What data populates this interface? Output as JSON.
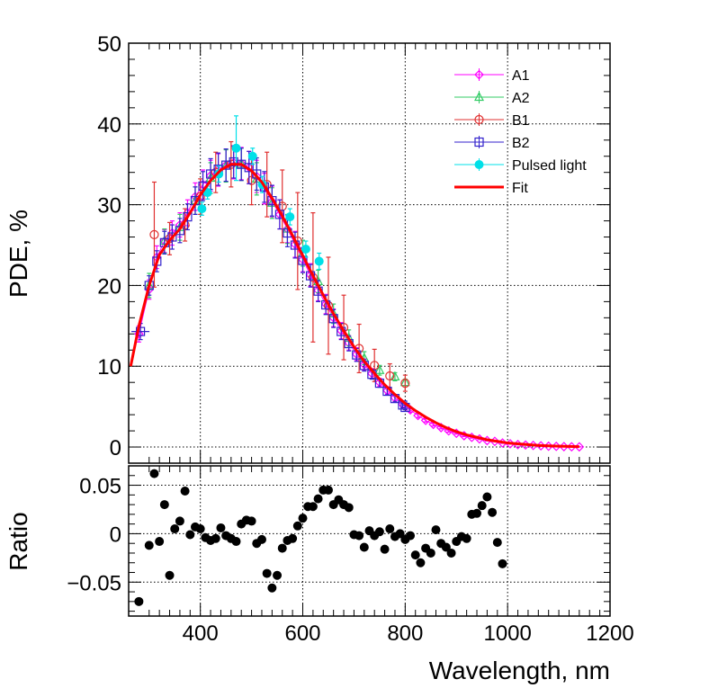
{
  "chart_data": [
    {
      "type": "scatter",
      "panel": "top",
      "title": "",
      "xlabel": "",
      "ylabel": "PDE, %",
      "xlim": [
        260,
        1200
      ],
      "ylim": [
        -2,
        50
      ],
      "yticks": [
        0,
        10,
        20,
        30,
        40,
        50
      ],
      "grid": true,
      "legend_position": "top-right",
      "series": [
        {
          "name": "A1",
          "color": "#ff00ff",
          "marker": "diamond-open",
          "x": [
            280,
            300,
            315,
            330,
            345,
            360,
            375,
            390,
            405,
            420,
            435,
            450,
            465,
            480,
            495,
            510,
            525,
            540,
            555,
            570,
            585,
            600,
            615,
            630,
            645,
            660,
            675,
            690,
            705,
            720,
            735,
            750,
            765,
            780,
            795,
            810,
            825,
            840,
            855,
            870,
            885,
            900,
            915,
            930,
            945,
            960,
            975,
            990,
            1005,
            1020,
            1035,
            1050,
            1065,
            1080,
            1095,
            1110,
            1125,
            1140
          ],
          "y": [
            14.0,
            19.5,
            23.5,
            25.5,
            26.5,
            27.5,
            29.0,
            31.0,
            32.5,
            33.6,
            34.3,
            34.9,
            35.2,
            35.1,
            34.6,
            33.5,
            32.0,
            30.4,
            28.8,
            27.0,
            25.1,
            23.2,
            21.3,
            19.4,
            17.7,
            16.0,
            14.4,
            12.9,
            11.5,
            10.2,
            9.1,
            8.0,
            7.0,
            6.1,
            5.3,
            4.6,
            3.9,
            3.3,
            2.8,
            2.4,
            2.0,
            1.7,
            1.4,
            1.2,
            1.0,
            0.8,
            0.7,
            0.5,
            0.4,
            0.3,
            0.25,
            0.2,
            0.15,
            0.1,
            0.08,
            0.05,
            0.03,
            0.02
          ],
          "err": [
            1.0,
            1.2,
            1.4,
            1.4,
            1.5,
            1.5,
            1.6,
            1.7,
            1.8,
            1.9,
            2.0,
            2.0,
            2.0,
            2.0,
            2.0,
            2.0,
            1.9,
            1.9,
            1.8,
            1.7,
            1.6,
            1.5,
            1.4,
            1.3,
            1.2,
            1.1,
            1.0,
            0.9,
            0.8,
            0.7,
            0.6,
            0.5,
            0.45,
            0.4,
            0.35,
            0.3,
            0.25,
            0.2,
            0.2,
            0.15,
            0.15,
            0.1,
            0.1,
            0.1,
            0.08,
            0.06,
            0.05,
            0.05,
            0.04,
            0.03,
            0.03,
            0.02,
            0.02,
            0.02,
            0.01,
            0.01,
            0.01,
            0.01
          ]
        },
        {
          "name": "A2",
          "color": "#33cc66",
          "marker": "triangle-open",
          "x": [
            300,
            330,
            360,
            390,
            420,
            450,
            480,
            510,
            540,
            570,
            600,
            630,
            660,
            690,
            720,
            750,
            780,
            800
          ],
          "y": [
            20.0,
            25.5,
            27.2,
            30.5,
            33.3,
            34.8,
            35.0,
            33.2,
            30.2,
            27.0,
            24.0,
            20.5,
            16.5,
            13.5,
            11.0,
            9.5,
            8.7,
            8.0
          ],
          "err": [
            1.5,
            1.5,
            1.6,
            1.7,
            1.9,
            2.0,
            2.0,
            2.0,
            1.9,
            1.8,
            1.6,
            1.4,
            1.2,
            1.0,
            0.8,
            0.6,
            0.5,
            0.4
          ]
        },
        {
          "name": "B1",
          "color": "#e03030",
          "marker": "circle-open",
          "x": [
            310,
            340,
            370,
            400,
            430,
            460,
            500,
            530,
            560,
            590,
            620,
            650,
            680,
            710,
            740,
            770,
            800
          ],
          "y": [
            26.3,
            25.8,
            27.5,
            31.0,
            34.0,
            35.0,
            33.0,
            32.5,
            29.8,
            25.5,
            21.0,
            17.5,
            14.8,
            12.2,
            10.1,
            8.8,
            7.9
          ],
          "err": [
            6.5,
            2.0,
            2.0,
            2.2,
            2.5,
            2.8,
            3.0,
            4.0,
            4.5,
            6.0,
            8.0,
            6.0,
            4.0,
            3.0,
            2.0,
            1.5,
            1.0
          ]
        },
        {
          "name": "B2",
          "color": "#3322cc",
          "marker": "square-open",
          "x": [
            283,
            300,
            315,
            330,
            345,
            360,
            375,
            390,
            405,
            420,
            435,
            450,
            465,
            480,
            495,
            510,
            525,
            540,
            555,
            570,
            585,
            600,
            615,
            630,
            645,
            660,
            675,
            690,
            705,
            720,
            735,
            750,
            765,
            780,
            795,
            800
          ],
          "y": [
            14.3,
            20.0,
            23.0,
            25.3,
            26.0,
            26.8,
            28.5,
            30.5,
            32.3,
            33.8,
            34.4,
            34.9,
            35.3,
            35.0,
            34.6,
            33.8,
            32.2,
            30.5,
            28.8,
            26.5,
            25.0,
            23.1,
            21.2,
            19.3,
            17.6,
            15.9,
            14.3,
            12.8,
            11.4,
            10.1,
            9.0,
            7.9,
            6.9,
            6.0,
            5.2,
            4.9
          ],
          "err": [
            1.0,
            1.2,
            1.3,
            1.4,
            1.5,
            1.5,
            1.6,
            1.7,
            1.8,
            1.9,
            2.0,
            2.0,
            2.0,
            2.0,
            2.0,
            2.0,
            1.9,
            1.9,
            1.8,
            1.7,
            1.6,
            1.5,
            1.4,
            1.3,
            1.2,
            1.1,
            1.0,
            0.9,
            0.8,
            0.7,
            0.6,
            0.5,
            0.45,
            0.4,
            0.35,
            0.3
          ]
        },
        {
          "name": "Pulsed light",
          "color": "#00e0e8",
          "marker": "circle-filled",
          "x": [
            403,
            414,
            436,
            470,
            502,
            521,
            575,
            606,
            632
          ],
          "y": [
            29.5,
            31.5,
            33.8,
            37.0,
            36.0,
            32.5,
            28.5,
            24.5,
            23.0
          ],
          "err": [
            0.8,
            0.8,
            1.0,
            4.0,
            1.0,
            1.0,
            1.0,
            1.0,
            1.0
          ]
        },
        {
          "name": "Fit",
          "color": "#ff0000",
          "marker": "line",
          "x": [
            264,
            280,
            300,
            320,
            340,
            360,
            380,
            400,
            420,
            440,
            460,
            480,
            500,
            520,
            540,
            560,
            580,
            600,
            620,
            640,
            660,
            680,
            700,
            720,
            740,
            760,
            780,
            800,
            820,
            840,
            860,
            880,
            900,
            920,
            940,
            960,
            980,
            1000,
            1020,
            1040,
            1060,
            1080,
            1100,
            1120,
            1140
          ],
          "y": [
            10.0,
            15.0,
            20.0,
            23.8,
            25.6,
            27.0,
            29.0,
            31.2,
            33.0,
            34.3,
            35.0,
            35.0,
            34.2,
            32.8,
            30.8,
            28.6,
            26.2,
            23.7,
            21.2,
            18.8,
            16.5,
            14.4,
            12.4,
            10.6,
            9.1,
            7.7,
            6.5,
            5.4,
            4.5,
            3.7,
            3.0,
            2.4,
            1.9,
            1.5,
            1.2,
            0.9,
            0.7,
            0.5,
            0.4,
            0.3,
            0.2,
            0.15,
            0.1,
            0.07,
            0.05
          ]
        }
      ]
    },
    {
      "type": "scatter",
      "panel": "bottom",
      "title": "",
      "xlabel": "Wavelength, nm",
      "ylabel": "Ratio",
      "xlim": [
        260,
        1200
      ],
      "ylim": [
        -0.085,
        0.07
      ],
      "xticks": [
        400,
        600,
        800,
        1000,
        1200
      ],
      "yticks": [
        -0.05,
        0,
        0.05
      ],
      "ytick_labels": [
        "−0.05",
        "0",
        "0.05"
      ],
      "grid": true,
      "series": [
        {
          "name": "Ratio",
          "color": "#000000",
          "marker": "circle-filled",
          "x": [
            280,
            300,
            310,
            320,
            330,
            340,
            350,
            360,
            370,
            380,
            390,
            400,
            410,
            420,
            430,
            440,
            450,
            460,
            470,
            480,
            490,
            500,
            510,
            520,
            530,
            540,
            550,
            560,
            570,
            580,
            590,
            600,
            610,
            620,
            630,
            640,
            650,
            660,
            670,
            680,
            690,
            700,
            710,
            720,
            730,
            740,
            750,
            760,
            770,
            780,
            790,
            800,
            810,
            820,
            830,
            840,
            850,
            860,
            870,
            880,
            890,
            900,
            910,
            920,
            930,
            940,
            950,
            960,
            970,
            980,
            990
          ],
          "y": [
            -0.07,
            -0.012,
            0.062,
            -0.008,
            0.03,
            -0.043,
            0.005,
            0.013,
            0.044,
            -0.001,
            0.007,
            0.005,
            -0.004,
            -0.007,
            -0.005,
            0.006,
            -0.002,
            -0.005,
            -0.008,
            0.01,
            0.014,
            0.013,
            -0.01,
            -0.006,
            -0.041,
            -0.056,
            -0.043,
            -0.015,
            -0.007,
            -0.005,
            0.008,
            0.016,
            0.028,
            0.028,
            0.036,
            0.045,
            0.045,
            0.03,
            0.035,
            0.03,
            0.027,
            -0.001,
            -0.002,
            -0.014,
            0.003,
            -0.002,
            0.002,
            -0.016,
            0.005,
            -0.003,
            0.0,
            -0.006,
            -0.002,
            -0.022,
            -0.03,
            -0.015,
            -0.02,
            0.004,
            -0.01,
            -0.014,
            -0.02,
            -0.008,
            -0.003,
            -0.005,
            0.02,
            0.021,
            0.029,
            0.038,
            0.022,
            -0.009,
            -0.031
          ]
        }
      ]
    }
  ]
}
